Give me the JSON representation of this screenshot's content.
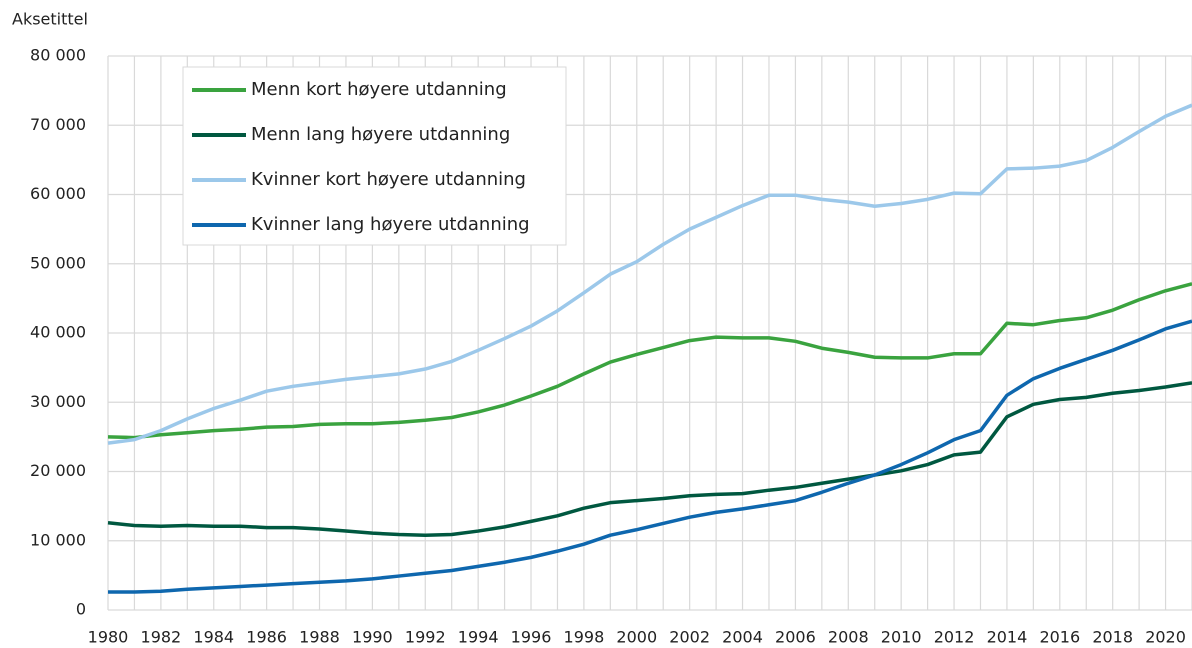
{
  "chart_data": {
    "type": "line",
    "y_axis_label": "Aksetittel",
    "x": [
      1980,
      1981,
      1982,
      1983,
      1984,
      1985,
      1986,
      1987,
      1988,
      1989,
      1990,
      1991,
      1992,
      1993,
      1994,
      1995,
      1996,
      1997,
      1998,
      1999,
      2000,
      2001,
      2002,
      2003,
      2004,
      2005,
      2006,
      2007,
      2008,
      2009,
      2010,
      2011,
      2012,
      2013,
      2014,
      2015,
      2016,
      2017,
      2018,
      2019,
      2020,
      2021
    ],
    "xlim": [
      1980,
      2021
    ],
    "xticks": [
      1980,
      1982,
      1984,
      1986,
      1988,
      1990,
      1992,
      1994,
      1996,
      1998,
      2000,
      2002,
      2004,
      2006,
      2008,
      2010,
      2012,
      2014,
      2016,
      2018,
      2020
    ],
    "ylim": [
      0,
      80000
    ],
    "yticks": [
      0,
      {
        "value": 10000,
        "label": "10 000"
      },
      {
        "value": 20000,
        "label": "20 000"
      },
      {
        "value": 30000,
        "label": "30 000"
      },
      {
        "value": 40000,
        "label": "40 000"
      },
      {
        "value": 50000,
        "label": "50 000"
      },
      {
        "value": 60000,
        "label": "60 000"
      },
      {
        "value": 70000,
        "label": "70 000"
      },
      {
        "value": 80000,
        "label": "80 000"
      }
    ],
    "grid": true,
    "legend": "upper left",
    "series": [
      {
        "name": "Menn kort høyere utdanning",
        "color": "#3aa33f",
        "values": [
          25000,
          24900,
          25300,
          25600,
          25900,
          26100,
          26400,
          26500,
          26800,
          26900,
          26900,
          27100,
          27400,
          27800,
          28600,
          29600,
          30900,
          32300,
          34100,
          35800,
          36900,
          37900,
          38900,
          39400,
          39300,
          39300,
          38800,
          37800,
          37200,
          36500,
          36400,
          36400,
          37000,
          37000,
          41400,
          41200,
          41800,
          42200,
          43300,
          44800,
          46100,
          47100
        ]
      },
      {
        "name": "Menn lang høyere utdanning",
        "color": "#005840",
        "values": [
          12600,
          12200,
          12100,
          12200,
          12100,
          12100,
          11900,
          11900,
          11700,
          11400,
          11100,
          10900,
          10800,
          10900,
          11400,
          12000,
          12800,
          13600,
          14700,
          15500,
          15800,
          16100,
          16500,
          16700,
          16800,
          17300,
          17700,
          18300,
          18900,
          19500,
          20100,
          21000,
          22400,
          22800,
          27900,
          29700,
          30400,
          30700,
          31300,
          31700,
          32200,
          32800
        ]
      },
      {
        "name": "Kvinner kort høyere utdanning",
        "color": "#9cc8ea",
        "values": [
          24100,
          24600,
          25900,
          27600,
          29100,
          30300,
          31600,
          32300,
          32800,
          33300,
          33700,
          34100,
          34800,
          35900,
          37500,
          39200,
          41000,
          43200,
          45800,
          48500,
          50300,
          52800,
          55000,
          56700,
          58400,
          59900,
          59900,
          59300,
          58900,
          58300,
          58700,
          59300,
          60200,
          60100,
          63700,
          63800,
          64100,
          64900,
          66800,
          69100,
          71300,
          72900
        ]
      },
      {
        "name": "Kvinner lang høyere utdanning",
        "color": "#0e67ae",
        "values": [
          2600,
          2600,
          2700,
          3000,
          3200,
          3400,
          3600,
          3800,
          4000,
          4200,
          4500,
          4900,
          5300,
          5700,
          6300,
          6900,
          7600,
          8500,
          9500,
          10800,
          11600,
          12500,
          13400,
          14100,
          14600,
          15200,
          15800,
          17000,
          18300,
          19500,
          21000,
          22700,
          24600,
          25900,
          31000,
          33400,
          34900,
          36200,
          37500,
          39000,
          40600,
          41700
        ]
      }
    ]
  }
}
